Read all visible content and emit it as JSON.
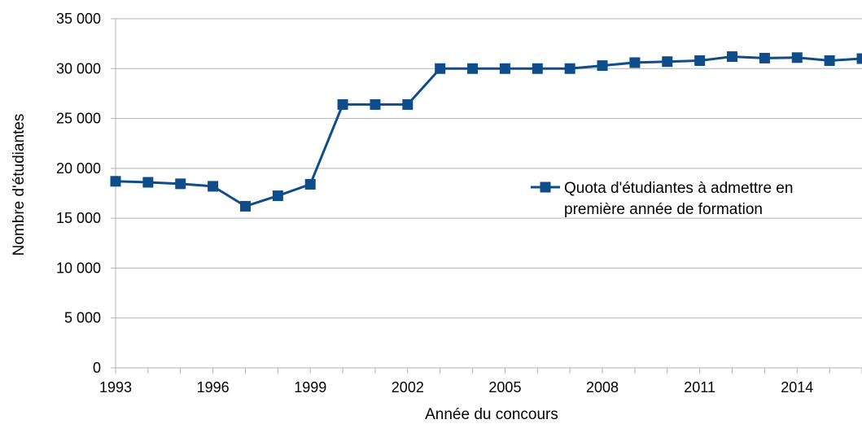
{
  "chart_data": {
    "type": "line",
    "title": "",
    "xlabel": "Année du concours",
    "ylabel": "Nombre d'étudiantes",
    "xlim": [
      1993,
      2016
    ],
    "ylim": [
      0,
      35000
    ],
    "x_ticks": [
      1993,
      1996,
      1999,
      2002,
      2005,
      2008,
      2011,
      2014
    ],
    "x_tick_labels": [
      "1993",
      "1996",
      "1999",
      "2002",
      "2005",
      "2008",
      "2011",
      "2014"
    ],
    "y_ticks": [
      0,
      5000,
      10000,
      15000,
      20000,
      25000,
      30000,
      35000
    ],
    "y_tick_labels": [
      "0",
      "5 000",
      "10 000",
      "15 000",
      "20 000",
      "25 000",
      "30 000",
      "35 000"
    ],
    "grid": "horizontal",
    "legend_position": "right",
    "series": [
      {
        "name": "Quota d'étudiantes à admettre en première année de formation",
        "legend_lines": [
          "Quota d'étudiantes à admettre en",
          "première année de formation"
        ],
        "color": "#0f4c8a",
        "marker": "square",
        "x": [
          1993,
          1994,
          1995,
          1996,
          1997,
          1998,
          1999,
          2000,
          2001,
          2002,
          2003,
          2004,
          2005,
          2006,
          2007,
          2008,
          2009,
          2010,
          2011,
          2012,
          2013,
          2014,
          2015,
          2016
        ],
        "values": [
          18700,
          18600,
          18450,
          18200,
          16200,
          17250,
          18400,
          26400,
          26400,
          26400,
          30000,
          30000,
          30000,
          30000,
          30000,
          30300,
          30600,
          30700,
          30800,
          31200,
          31050,
          31100,
          30800,
          31000
        ]
      }
    ]
  }
}
